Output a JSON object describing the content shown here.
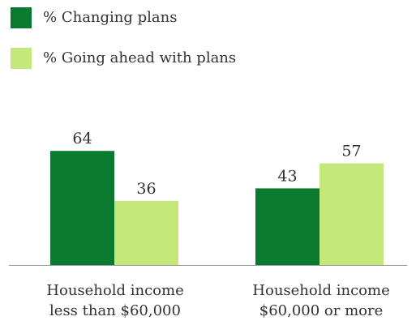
{
  "chart_data": {
    "type": "bar",
    "categories": [
      [
        "Household income",
        "less than $60,000"
      ],
      [
        "Household income",
        "$60,000 or more"
      ]
    ],
    "series": [
      {
        "name": "% Changing plans",
        "values": [
          64,
          43
        ],
        "color": "#0a7a2f"
      },
      {
        "name": "% Going ahead with plans",
        "values": [
          36,
          57
        ],
        "color": "#c5e87a"
      }
    ],
    "ylim": [
      0,
      70
    ],
    "grid": false,
    "legend_position": "top-left"
  }
}
